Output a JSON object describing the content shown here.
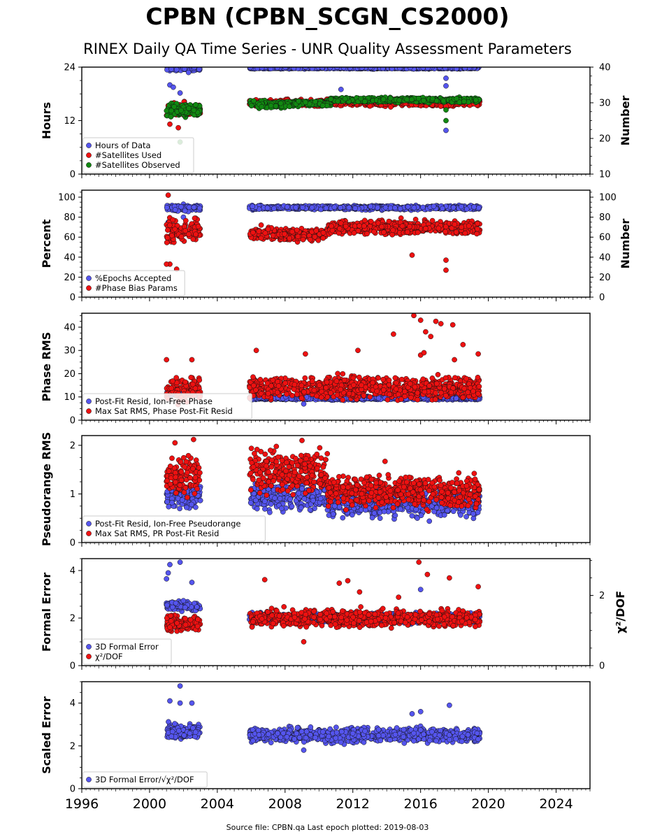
{
  "title": "CPBN (CPBN_SCGN_CS2000)",
  "subtitle": "RINEX Daily QA Time Series - UNR Quality Assessment Parameters",
  "source": "Source file: CPBN.qa Last epoch plotted: 2019-08-03",
  "colors": {
    "blue": "#5555ee",
    "red": "#ee1111",
    "green": "#118811",
    "darkblue": "#1a1a66"
  },
  "chart_data": [
    {
      "type": "scatter",
      "ylabel": "Hours",
      "y2label": "Number",
      "xlim": [
        1996,
        2026
      ],
      "ylim": [
        0,
        24
      ],
      "y2lim": [
        10,
        40
      ],
      "yticks": [
        "0",
        "12",
        "24"
      ],
      "y2ticks": [
        "10",
        "20",
        "30",
        "40"
      ],
      "legend": "bottom-left",
      "series": [
        {
          "name": "Hours of Data",
          "color": "blue",
          "axis": "left",
          "segments": [
            {
              "x": [
                2001.0,
                2003.0
              ],
              "y": 23.6,
              "spread": 0.4
            },
            {
              "x": [
                2005.9,
                2019.5
              ],
              "y": 23.8,
              "spread": 0.2
            }
          ],
          "outliers": [
            [
              2001.2,
              20.0
            ],
            [
              2001.4,
              19.5
            ],
            [
              2001.8,
              18.2
            ],
            [
              2011.3,
              19.0
            ],
            [
              2017.5,
              21.5
            ],
            [
              2017.5,
              19.8
            ],
            [
              2017.5,
              9.8
            ],
            [
              2002.3,
              22.8
            ]
          ]
        },
        {
          "name": "#Satellites Used",
          "color": "red",
          "axis": "right",
          "segments": [
            {
              "x": [
                2001.0,
                2003.0
              ],
              "y": 28.0,
              "spread": 2.0
            },
            {
              "x": [
                2005.9,
                2019.5
              ],
              "y": 30.0,
              "spread": 1.0
            }
          ],
          "outliers": [
            [
              2001.2,
              24.0
            ],
            [
              2001.7,
              23.0
            ],
            [
              2017.5,
              29.0
            ]
          ]
        },
        {
          "name": "#Satellites Observed",
          "color": "green",
          "axis": "right",
          "segments": [
            {
              "x": [
                2001.0,
                2003.0
              ],
              "y": 28.0,
              "spread": 2.0
            },
            {
              "x": [
                2005.9,
                2008.5
              ],
              "y": 29.5,
              "spread": 1.0
            },
            {
              "x": [
                2008.5,
                2010.7
              ],
              "y": 29.8,
              "spread": 0.8
            },
            {
              "x": [
                2010.7,
                2019.5
              ],
              "y": 30.8,
              "spread": 0.7
            }
          ],
          "outliers": [
            [
              2001.8,
              19.0
            ],
            [
              2017.5,
              25.0
            ],
            [
              2017.5,
              28.0
            ]
          ]
        }
      ]
    },
    {
      "type": "scatter",
      "ylabel": "Percent",
      "y2label": "Number",
      "xlim": [
        1996,
        2026
      ],
      "ylim": [
        0,
        107
      ],
      "y2lim": [
        0,
        107
      ],
      "yticks": [
        "0",
        "20",
        "40",
        "60",
        "80",
        "100"
      ],
      "y2ticks": [
        "0",
        "20",
        "40",
        "60",
        "80",
        "100"
      ],
      "legend": "bottom-left",
      "series": [
        {
          "name": "%Epochs Accepted",
          "color": "blue",
          "axis": "left",
          "segments": [
            {
              "x": [
                2001.0,
                2003.0
              ],
              "y": 89.0,
              "spread": 3.5
            },
            {
              "x": [
                2005.9,
                2019.5
              ],
              "y": 89.5,
              "spread": 2.0
            }
          ],
          "outliers": [
            [
              2002.0,
              80.0
            ],
            [
              2001.1,
              75.0
            ]
          ]
        },
        {
          "name": "#Phase Bias Params",
          "color": "red",
          "axis": "right",
          "segments": [
            {
              "x": [
                2001.0,
                2003.0
              ],
              "y": 66.0,
              "spread": 12.0
            },
            {
              "x": [
                2005.9,
                2010.5
              ],
              "y": 63.0,
              "spread": 7.0
            },
            {
              "x": [
                2010.5,
                2019.5
              ],
              "y": 70.0,
              "spread": 7.0
            }
          ],
          "outliers": [
            [
              2001.1,
              102.0
            ],
            [
              2001.2,
              33.0
            ],
            [
              2001.6,
              28.0
            ],
            [
              2015.5,
              42.0
            ],
            [
              2017.5,
              37.0
            ],
            [
              2017.5,
              27.0
            ],
            [
              2001.0,
              33.0
            ]
          ]
        }
      ]
    },
    {
      "type": "scatter",
      "ylabel": "Phase RMS",
      "xlim": [
        1996,
        2026
      ],
      "ylim": [
        0,
        46
      ],
      "yticks": [
        "0",
        "10",
        "20",
        "30",
        "40"
      ],
      "legend": "bottom-left",
      "series": [
        {
          "name": "Post-Fit Resid, Ion-Free Phase",
          "color": "blue",
          "axis": "left",
          "segments": [
            {
              "x": [
                2001.0,
                2003.0
              ],
              "y": 11.5,
              "spread": 1.0
            },
            {
              "x": [
                2005.9,
                2019.5
              ],
              "y": 9.5,
              "spread": 0.8
            }
          ],
          "outliers": [
            [
              2009.1,
              7.0
            ]
          ]
        },
        {
          "name": "Max Sat RMS, Phase Post-Fit Resid",
          "color": "red",
          "axis": "left",
          "segments": [
            {
              "x": [
                2001.0,
                2003.0
              ],
              "y": 13.0,
              "spread": 5.0
            },
            {
              "x": [
                2005.9,
                2019.5
              ],
              "y": 14.0,
              "spread": 5.0
            }
          ],
          "outliers": [
            [
              2001.0,
              26.0
            ],
            [
              2006.3,
              30.0
            ],
            [
              2012.3,
              30.0
            ],
            [
              2014.4,
              37.0
            ],
            [
              2015.6,
              45.0
            ],
            [
              2016.0,
              43.0
            ],
            [
              2016.3,
              38.0
            ],
            [
              2016.6,
              36.0
            ],
            [
              2016.9,
              42.5
            ],
            [
              2017.2,
              41.5
            ],
            [
              2017.9,
              41.0
            ],
            [
              2018.5,
              32.5
            ],
            [
              2016.0,
              28.0
            ],
            [
              2016.2,
              29.0
            ],
            [
              2018.0,
              26.0
            ],
            [
              2019.4,
              28.5
            ],
            [
              2009.2,
              28.5
            ],
            [
              2002.5,
              26.0
            ]
          ]
        }
      ]
    },
    {
      "type": "scatter",
      "ylabel": "Pseudorange RMS",
      "xlim": [
        1996,
        2026
      ],
      "ylim": [
        0,
        2.2
      ],
      "yticks": [
        "0",
        "1",
        "2"
      ],
      "legend": "bottom-left",
      "series": [
        {
          "name": "Post-Fit Resid, Ion-Free Pseudorange",
          "color": "blue",
          "axis": "left",
          "segments": [
            {
              "x": [
                2001.0,
                2003.0
              ],
              "y": 0.95,
              "spread": 0.25
            },
            {
              "x": [
                2005.9,
                2010.5
              ],
              "y": 0.95,
              "spread": 0.3
            },
            {
              "x": [
                2010.5,
                2019.5
              ],
              "y": 0.8,
              "spread": 0.3
            }
          ],
          "outliers": []
        },
        {
          "name": "Max Sat RMS, PR Post-Fit Resid",
          "color": "red",
          "axis": "left",
          "segments": [
            {
              "x": [
                2001.0,
                2003.0
              ],
              "y": 1.4,
              "spread": 0.4
            },
            {
              "x": [
                2005.9,
                2010.5
              ],
              "y": 1.45,
              "spread": 0.45
            },
            {
              "x": [
                2010.5,
                2019.5
              ],
              "y": 1.05,
              "spread": 0.35
            }
          ],
          "outliers": [
            [
              2002.6,
              2.12
            ],
            [
              2009.0,
              2.1
            ],
            [
              2013.9,
              1.67
            ],
            [
              2001.5,
              2.05
            ]
          ]
        }
      ]
    },
    {
      "type": "scatter",
      "ylabel": "Formal Error",
      "y2label": "χ²/DOF",
      "xlim": [
        1996,
        2026
      ],
      "ylim": [
        0,
        4.5
      ],
      "y2lim": [
        0,
        3.05
      ],
      "yticks": [
        "0",
        "2",
        "4"
      ],
      "y2ticks": [
        "0",
        "2"
      ],
      "legend": "bottom-left",
      "series": [
        {
          "name": "3D Formal Error",
          "color": "blue",
          "axis": "left",
          "segments": [
            {
              "x": [
                2001.0,
                2003.0
              ],
              "y": 2.5,
              "spread": 0.2
            },
            {
              "x": [
                2005.9,
                2019.5
              ],
              "y": 2.0,
              "spread": 0.2
            }
          ],
          "outliers": [
            [
              2001.2,
              4.25
            ],
            [
              2001.8,
              4.35
            ],
            [
              2001.1,
              3.9
            ],
            [
              2001.0,
              3.65
            ],
            [
              2002.5,
              3.5
            ],
            [
              2016.0,
              3.2
            ]
          ]
        },
        {
          "name": "χ²/DOF",
          "color": "red",
          "axis": "right",
          "segments": [
            {
              "x": [
                2001.0,
                2003.0
              ],
              "y": 1.2,
              "spread": 0.25
            },
            {
              "x": [
                2005.9,
                2019.5
              ],
              "y": 1.35,
              "spread": 0.25
            }
          ],
          "outliers": [
            [
              2006.8,
              2.45
            ],
            [
              2011.2,
              2.35
            ],
            [
              2011.7,
              2.42
            ],
            [
              2015.9,
              2.95
            ],
            [
              2016.4,
              2.6
            ],
            [
              2017.7,
              2.5
            ],
            [
              2019.4,
              2.25
            ],
            [
              2009.1,
              0.68
            ],
            [
              2012.4,
              2.1
            ],
            [
              2014.7,
              1.95
            ]
          ]
        }
      ]
    },
    {
      "type": "scatter",
      "ylabel": "Scaled Error",
      "xlim": [
        1996,
        2026
      ],
      "ylim": [
        0,
        5
      ],
      "yticks": [
        "0",
        "2",
        "4"
      ],
      "xticks": [
        "1996",
        "2000",
        "2004",
        "2008",
        "2012",
        "2016",
        "2020",
        "2024"
      ],
      "legend": "bottom-left",
      "series": [
        {
          "name": "3D Formal Error/√χ²/DOF",
          "color": "blue",
          "axis": "left",
          "segments": [
            {
              "x": [
                2001.0,
                2003.0
              ],
              "y": 2.7,
              "spread": 0.35
            },
            {
              "x": [
                2005.9,
                2019.5
              ],
              "y": 2.5,
              "spread": 0.35
            }
          ],
          "outliers": [
            [
              2001.8,
              4.8
            ],
            [
              2001.2,
              4.1
            ],
            [
              2002.5,
              4.0
            ],
            [
              2001.8,
              4.0
            ],
            [
              2017.7,
              3.9
            ],
            [
              2009.1,
              1.8
            ],
            [
              2016.0,
              3.6
            ],
            [
              2015.5,
              3.5
            ]
          ]
        }
      ]
    }
  ]
}
